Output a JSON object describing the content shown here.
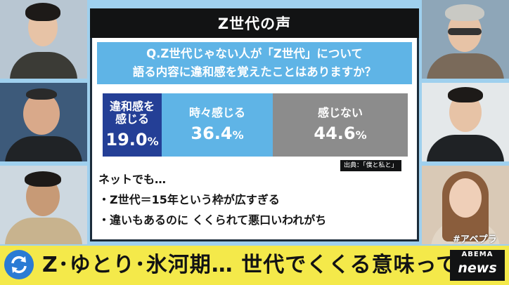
{
  "board": {
    "title": "Z世代の声",
    "question_line1": "Q.Z世代じゃない人が「Z世代」について",
    "question_line2": "語る内容に違和感を覚えたことはありますか？",
    "results": [
      {
        "label_line1": "違和感を",
        "label_line2": "感じる",
        "value": "19.0",
        "unit": "%",
        "color": "#243f96"
      },
      {
        "label_line1": "時々感じる",
        "label_line2": "",
        "value": "36.4",
        "unit": "%",
        "color": "#5fb4e6"
      },
      {
        "label_line1": "感じない",
        "label_line2": "",
        "value": "44.6",
        "unit": "%",
        "color": "#8c8c8c"
      }
    ],
    "source": "出典：「僕と私と」",
    "notes": [
      "ネットでも…",
      "・Z世代＝15年という枠が広すぎる",
      "・違いもあるのに くくられて悪口いわれがち"
    ]
  },
  "caption": {
    "headline": "Z･ゆとり･氷河期… 世代でくくる意味って？",
    "hashtag": "#アベプラ",
    "logo_top": "ABEMA",
    "logo_bottom": "news"
  }
}
